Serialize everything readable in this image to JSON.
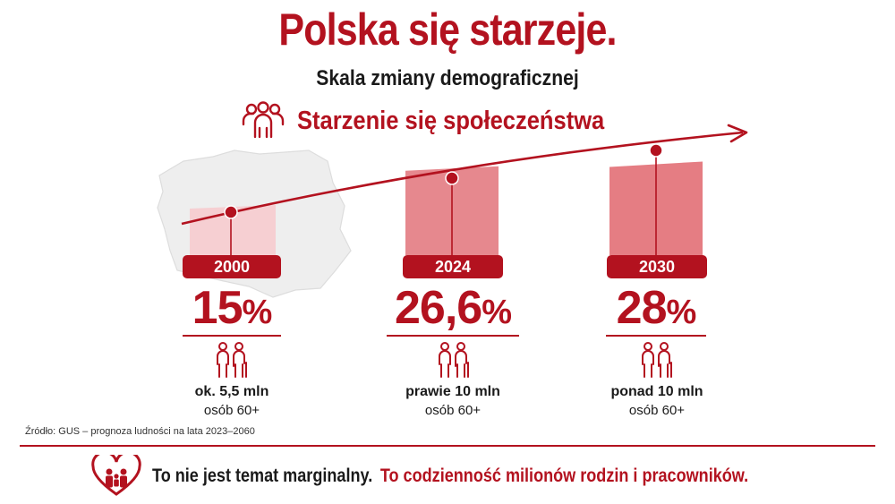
{
  "header": {
    "title": "Polska się starzeje.",
    "subtitle": "Skala zmiany demograficznej"
  },
  "section": {
    "title": "Starzenie się społeczeństwa",
    "icon": "group-people-icon"
  },
  "colors": {
    "accent": "#b3121f",
    "bar_2000": "#f6cfd2",
    "bar_2024": "#e6888e",
    "bar_2030": "#e57d83",
    "map": "#ededed"
  },
  "chart_data": {
    "type": "bar",
    "categories": [
      "2000",
      "2024",
      "2030"
    ],
    "values": [
      15,
      26.6,
      28
    ],
    "value_labels": [
      "15",
      "26,6",
      "28"
    ],
    "unit": "%",
    "ylim": [
      0,
      30
    ]
  },
  "stats": [
    {
      "year": "2000",
      "value": "15",
      "unit": "%",
      "line1": "ok. 5,5 mln",
      "line2": "osób 60+"
    },
    {
      "year": "2024",
      "value": "26,6",
      "unit": "%",
      "line1": "prawie 10 mln",
      "line2": "osób 60+"
    },
    {
      "year": "2030",
      "value": "28",
      "unit": "%",
      "line1": "ponad 10 mln",
      "line2": "osób 60+"
    }
  ],
  "source": "Źródło: GUS – prognoza ludności na lata 2023–2060",
  "footer": {
    "part1": "To nie jest temat marginalny.",
    "part2": "To codzienność milionów rodzin i pracowników.",
    "icon": "heart-family-icon"
  }
}
